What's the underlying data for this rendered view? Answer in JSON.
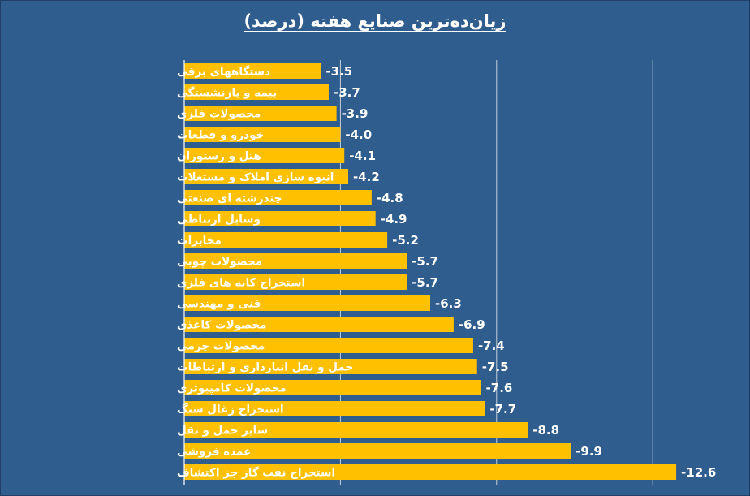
{
  "chart_data": {
    "type": "bar",
    "orientation": "horizontal",
    "title": "زیان‌ده‌ترین صنایع هفته (درصد)",
    "categories": [
      "دستگاههای برقی",
      "بیمه و بازنشستگی",
      "محصولات فلزی",
      "خودرو و قطعات",
      "هتل و رستوران",
      "انبوه سازی املاک و مستغلات",
      "چندرشته ای صنعتی",
      "وسایل ارتباطی",
      "مخابرات",
      "محصولات چوبی",
      "استخراج کانه های فلزی",
      "فنی و مهندسی",
      "محصولات کاغذی",
      "محصولات چرمی",
      "حمل و نقل انبارداری و ارتباطات",
      "محصولات کامپیوتری",
      "استخراج زغال سنگ",
      "سایر حمل و نقل",
      "عمده فروشی",
      "استخراج نفت گاز جز اکتشاف"
    ],
    "values": [
      -3.5,
      -3.7,
      -3.9,
      -4.0,
      -4.1,
      -4.2,
      -4.8,
      -4.9,
      -5.2,
      -5.7,
      -5.7,
      -6.3,
      -6.9,
      -7.4,
      -7.5,
      -7.6,
      -7.7,
      -8.8,
      -9.9,
      -12.6
    ],
    "value_labels": [
      "-3.5",
      "-3.7",
      "-3.9",
      "-4.0",
      "-4.1",
      "-4.2",
      "-4.8",
      "-4.9",
      "-5.2",
      "-5.7",
      "-5.7",
      "-6.3",
      "-6.9",
      "-7.4",
      "-7.5",
      "-7.6",
      "-7.7",
      "-8.8",
      "-9.9",
      "-12.6"
    ],
    "xlim": [
      0,
      -14
    ],
    "gridlines": true,
    "legend": false,
    "colors": {
      "background": "#2f5d8d",
      "bar": "#ffc000",
      "gridline": "#c8d0da",
      "text": "#ffffff"
    }
  }
}
